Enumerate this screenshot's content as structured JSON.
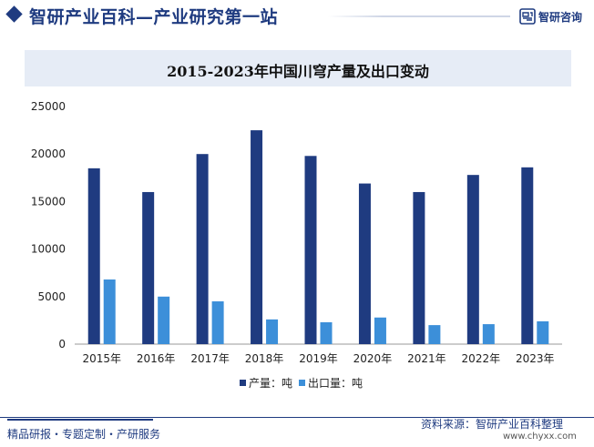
{
  "header": {
    "site_title": "智研产业百科—产业研究第一站",
    "brand_name": "智研咨询",
    "brand_color": "#1f3b80"
  },
  "footer": {
    "left_text": "精品研报・专题定制・产研服务",
    "source_label": "资料来源：",
    "source_value": "智研产业百科整理",
    "url": "www.chyxx.com"
  },
  "chart_data": {
    "type": "bar",
    "title": "2015-2023年中国川穹产量及出口变动",
    "categories": [
      "2015年",
      "2016年",
      "2017年",
      "2018年",
      "2019年",
      "2020年",
      "2021年",
      "2022年",
      "2023年"
    ],
    "series": [
      {
        "name": "产量：吨",
        "color": "#1f3b80",
        "values": [
          18500,
          16000,
          20000,
          22500,
          19800,
          16900,
          16000,
          17800,
          18600
        ]
      },
      {
        "name": "出口量：吨",
        "color": "#3c8fd9",
        "values": [
          6800,
          5000,
          4500,
          2600,
          2300,
          2800,
          2000,
          2100,
          2400
        ]
      }
    ],
    "y_ticks": [
      "0",
      "5000",
      "10000",
      "15000",
      "20000",
      "25000"
    ],
    "ylim": [
      0,
      25000
    ],
    "xlabel": "",
    "ylabel": "",
    "grid": false,
    "legend_position": "bottom-center"
  }
}
